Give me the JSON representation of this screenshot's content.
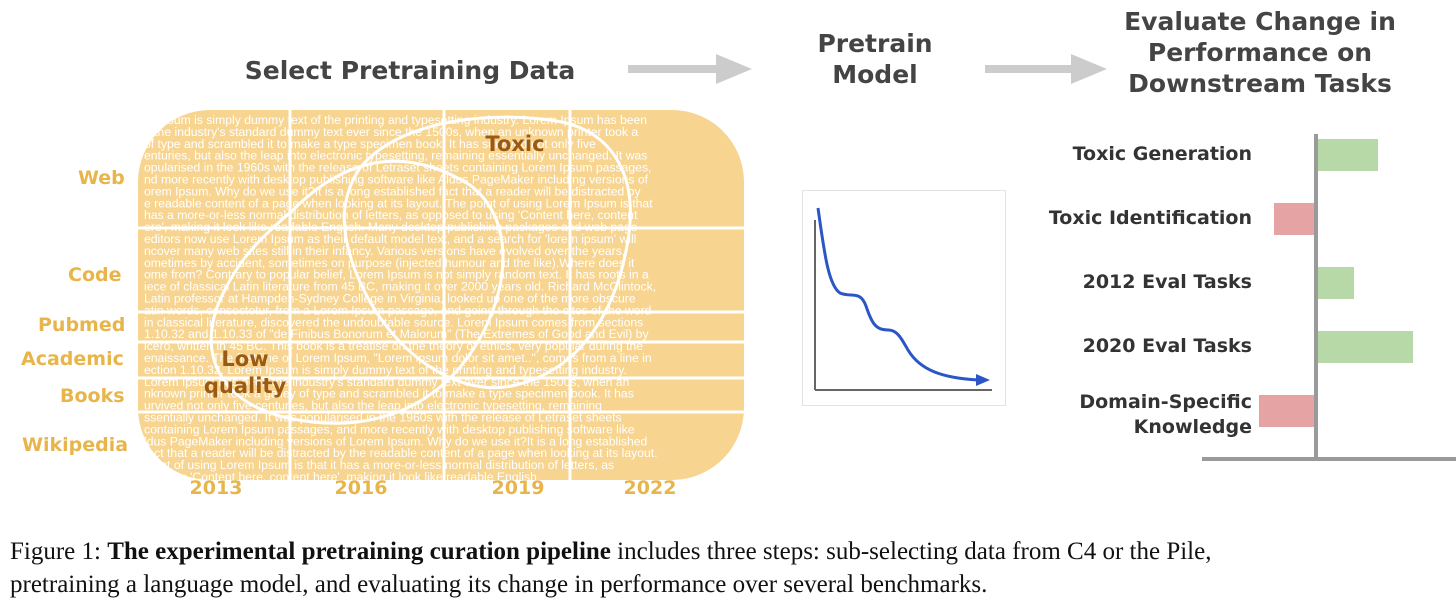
{
  "headings": {
    "select": "Select Pretraining Data",
    "pretrain": "Pretrain\nModel",
    "evaluate": "Evaluate Change in\nPerformance on\nDownstream Tasks"
  },
  "sources": [
    "Web",
    "Code",
    "Pubmed",
    "Academic",
    "Books",
    "Wikipedia"
  ],
  "years": [
    "2013",
    "2016",
    "2019",
    "2022"
  ],
  "regions": {
    "toxic": "Toxic",
    "low_quality": "Low\nquality"
  },
  "filler_text_lines": [
    "m Ipsum is simply dummy text of the printing and typesetting industry. Lorem Ipsum has been",
    "n the industry's standard dummy text ever since the 1500s, when an unknown printer took a",
    "of type and scrambled it to make a type specimen book. It has survived not only five",
    "enturies, but also the leap into electronic typesetting, remaining essentially unchanged. It was",
    "opularised in the 1960s with the release of Letraset sheets containing Lorem Ipsum passages,",
    "nd more recently with desktop publishing software like Aldus PageMaker including versions of",
    "orem Ipsum. Why do we use it?It is a long established fact that a reader will be distracted by",
    "e readable content of a page when looking at its layout. The point of using Lorem Ipsum is that",
    "has a more-or-less normal distribution of letters, as opposed to using 'Content here, content",
    "ere', making it look like readable English. Many desktop publishing packages and web page",
    "editors now use Lorem Ipsum as their default model text, and a search for 'lorem ipsum' will",
    "ncover many web sites still in their infancy. Various versions have evolved over the years,",
    "ometimes by accident, sometimes on purpose (injected humour and the like).Where does it",
    "ome from? Contrary to popular belief, Lorem Ipsum is not simply random text. It has roots in a",
    "iece of classical Latin literature from 45 BC, making it over 2000 years old. Richard McClintock,",
    "Latin professor at Hampden-Sydney College in Virginia, looked up one of the more obscure",
    "atin words, consectetur, from a Lorem Ipsum passage, and going through the cites of the word",
    "in classical literature, discovered the undoubtable source. Lorem Ipsum comes from sections",
    "1.10.32 and 1.10.33 of \"de Finibus Bonorum et Malorum\" (The Extremes of Good and Evil) by",
    "icero, written in 45 BC. This book is a treatise on the theory of ethics, very popular during the",
    "enaissance. The first line of Lorem Ipsum, \"Lorem ipsum dolor sit amet..\", comes from a line in",
    "ection 1.10.32. Lorem Ipsum is simply dummy text of the printing and typesetting industry.",
    "Lorem Ipsum has been the industry's standard dummy text ever since the 1500s, when an",
    "nknown printer took a galley of type and scrambled it to make a type specimen book. It has",
    "urvived not only five centuries, but also the leap into electronic typesetting, remaining",
    "ssentially unchanged. It was popularised in the 1960s with the release of Letraset sheets",
    "containing Lorem Ipsum passages, and more recently with desktop publishing software like",
    "ldus PageMaker including versions of Lorem Ipsum. Why do we use it?It is a long established",
    "fact that a reader will be distracted by the readable content of a page when looking at its layout.",
    "point of using Lorem Ipsum is that it has a more-or-less normal distribution of letters, as",
    "to using 'Content here, content here', making it look like readable English."
  ],
  "tasks": [
    {
      "label": "Toxic Generation",
      "value": 0.6,
      "color": "#b7d9a8"
    },
    {
      "label": "Toxic Identification",
      "value": -0.4,
      "color": "#e6a3a3"
    },
    {
      "label": "2012 Eval Tasks",
      "value": 0.36,
      "color": "#b7d9a8"
    },
    {
      "label": "2020 Eval Tasks",
      "value": 0.95,
      "color": "#b7d9a8"
    },
    {
      "label": "Domain-Specific\nKnowledge",
      "value": -0.55,
      "color": "#e6a3a3"
    }
  ],
  "caption": {
    "prefix": "Figure 1: ",
    "bold": "The experimental pretraining curation pipeline",
    "rest": " includes three steps: sub-selecting data from C4 or the Pile,",
    "line2": "pretraining a language model, and evaluating its change in performance over several benchmarks."
  },
  "colors": {
    "data_box": "#f7d48f",
    "source_label": "#e8b54a",
    "arrow": "#cccccc",
    "loss_curve": "#2a56c6",
    "positive_bar": "#b7d9a8",
    "negative_bar": "#e6a3a3",
    "axis": "#9a9a9a"
  }
}
